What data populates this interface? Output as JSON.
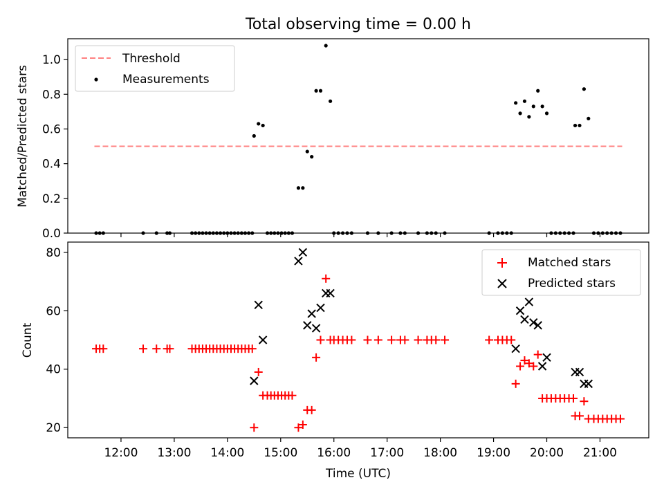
{
  "title": "Total observing time = 0.00 h",
  "chart_data": [
    {
      "type": "scatter",
      "panel": "top",
      "ylabel": "Matched/Predicted stars",
      "ylim": [
        0,
        1.12
      ],
      "yticks": [
        0.0,
        0.2,
        0.4,
        0.6,
        0.8,
        1.0
      ],
      "ytick_labels": [
        "0.0",
        "0.2",
        "0.4",
        "0.6",
        "0.8",
        "1.0"
      ],
      "legend": {
        "placement": "upper-left",
        "entries": [
          "Threshold",
          "Measurements"
        ]
      },
      "threshold": {
        "name": "Threshold",
        "value": 0.5,
        "x_start": "11:30",
        "x_end": "21:25",
        "color": "#ff8080",
        "style": "dashed"
      },
      "series": [
        {
          "name": "Measurements",
          "color": "#000000",
          "marker": "dot",
          "points": [
            [
              "11:32",
              0
            ],
            [
              "11:36",
              0
            ],
            [
              "11:40",
              0
            ],
            [
              "12:25",
              0
            ],
            [
              "12:40",
              0
            ],
            [
              "12:52",
              0
            ],
            [
              "12:55",
              0
            ],
            [
              "13:20",
              0
            ],
            [
              "13:24",
              0
            ],
            [
              "13:28",
              0
            ],
            [
              "13:32",
              0
            ],
            [
              "13:36",
              0
            ],
            [
              "13:40",
              0
            ],
            [
              "13:44",
              0
            ],
            [
              "13:48",
              0
            ],
            [
              "13:52",
              0
            ],
            [
              "13:56",
              0
            ],
            [
              "14:00",
              0
            ],
            [
              "14:04",
              0
            ],
            [
              "14:08",
              0
            ],
            [
              "14:12",
              0
            ],
            [
              "14:16",
              0
            ],
            [
              "14:20",
              0
            ],
            [
              "14:24",
              0
            ],
            [
              "14:28",
              0
            ],
            [
              "14:30",
              0.56
            ],
            [
              "14:35",
              0.63
            ],
            [
              "14:40",
              0.62
            ],
            [
              "14:45",
              0
            ],
            [
              "14:49",
              0
            ],
            [
              "14:53",
              0
            ],
            [
              "14:57",
              0
            ],
            [
              "15:01",
              0
            ],
            [
              "15:05",
              0
            ],
            [
              "15:09",
              0
            ],
            [
              "15:13",
              0
            ],
            [
              "15:20",
              0.26
            ],
            [
              "15:25",
              0.26
            ],
            [
              "15:30",
              0.47
            ],
            [
              "15:35",
              0.44
            ],
            [
              "15:40",
              0.82
            ],
            [
              "15:45",
              0.82
            ],
            [
              "15:51",
              1.08
            ],
            [
              "15:56",
              0.76
            ],
            [
              "16:00",
              0
            ],
            [
              "16:05",
              0
            ],
            [
              "16:10",
              0
            ],
            [
              "16:15",
              0
            ],
            [
              "16:20",
              0
            ],
            [
              "16:38",
              0
            ],
            [
              "16:50",
              0
            ],
            [
              "17:05",
              0
            ],
            [
              "17:15",
              0
            ],
            [
              "17:20",
              0
            ],
            [
              "17:35",
              0
            ],
            [
              "17:45",
              0
            ],
            [
              "17:50",
              0
            ],
            [
              "17:55",
              0
            ],
            [
              "18:05",
              0
            ],
            [
              "18:55",
              0
            ],
            [
              "19:05",
              0
            ],
            [
              "19:10",
              0
            ],
            [
              "19:15",
              0
            ],
            [
              "19:20",
              0
            ],
            [
              "19:25",
              0.75
            ],
            [
              "19:30",
              0.69
            ],
            [
              "19:35",
              0.76
            ],
            [
              "19:40",
              0.67
            ],
            [
              "19:45",
              0.73
            ],
            [
              "19:50",
              0.82
            ],
            [
              "19:55",
              0.73
            ],
            [
              "20:00",
              0.69
            ],
            [
              "20:05",
              0
            ],
            [
              "20:10",
              0
            ],
            [
              "20:15",
              0
            ],
            [
              "20:20",
              0
            ],
            [
              "20:25",
              0
            ],
            [
              "20:30",
              0
            ],
            [
              "20:32",
              0.62
            ],
            [
              "20:37",
              0.62
            ],
            [
              "20:42",
              0.83
            ],
            [
              "20:47",
              0.66
            ],
            [
              "20:53",
              0
            ],
            [
              "20:58",
              0
            ],
            [
              "21:03",
              0
            ],
            [
              "21:08",
              0
            ],
            [
              "21:13",
              0
            ],
            [
              "21:18",
              0
            ],
            [
              "21:23",
              0
            ]
          ]
        }
      ]
    },
    {
      "type": "scatter",
      "panel": "bottom",
      "xlabel": "Time (UTC)",
      "ylabel": "Count",
      "xlim": [
        "11:00",
        "21:55"
      ],
      "xticks": [
        "12:00",
        "13:00",
        "14:00",
        "15:00",
        "16:00",
        "17:00",
        "18:00",
        "19:00",
        "20:00",
        "21:00"
      ],
      "ylim": [
        16.5,
        83.5
      ],
      "yticks": [
        20,
        40,
        60,
        80
      ],
      "ytick_labels": [
        "20",
        "40",
        "60",
        "80"
      ],
      "legend": {
        "placement": "upper-right",
        "entries": [
          "Matched stars",
          "Predicted stars"
        ]
      },
      "series": [
        {
          "name": "Matched stars",
          "color": "#ff0000",
          "marker": "plus",
          "points": [
            [
              "11:32",
              47
            ],
            [
              "11:36",
              47
            ],
            [
              "11:40",
              47
            ],
            [
              "12:25",
              47
            ],
            [
              "12:40",
              47
            ],
            [
              "12:52",
              47
            ],
            [
              "12:55",
              47
            ],
            [
              "13:20",
              47
            ],
            [
              "13:24",
              47
            ],
            [
              "13:28",
              47
            ],
            [
              "13:32",
              47
            ],
            [
              "13:36",
              47
            ],
            [
              "13:40",
              47
            ],
            [
              "13:44",
              47
            ],
            [
              "13:48",
              47
            ],
            [
              "13:52",
              47
            ],
            [
              "13:56",
              47
            ],
            [
              "14:00",
              47
            ],
            [
              "14:04",
              47
            ],
            [
              "14:08",
              47
            ],
            [
              "14:12",
              47
            ],
            [
              "14:16",
              47
            ],
            [
              "14:20",
              47
            ],
            [
              "14:24",
              47
            ],
            [
              "14:28",
              47
            ],
            [
              "14:30",
              20
            ],
            [
              "14:35",
              39
            ],
            [
              "14:40",
              31
            ],
            [
              "14:45",
              31
            ],
            [
              "14:49",
              31
            ],
            [
              "14:53",
              31
            ],
            [
              "14:57",
              31
            ],
            [
              "15:01",
              31
            ],
            [
              "15:05",
              31
            ],
            [
              "15:09",
              31
            ],
            [
              "15:13",
              31
            ],
            [
              "15:20",
              20
            ],
            [
              "15:25",
              21
            ],
            [
              "15:30",
              26
            ],
            [
              "15:35",
              26
            ],
            [
              "15:40",
              44
            ],
            [
              "15:45",
              50
            ],
            [
              "15:51",
              71
            ],
            [
              "15:56",
              50
            ],
            [
              "16:00",
              50
            ],
            [
              "16:05",
              50
            ],
            [
              "16:10",
              50
            ],
            [
              "16:15",
              50
            ],
            [
              "16:20",
              50
            ],
            [
              "16:38",
              50
            ],
            [
              "16:50",
              50
            ],
            [
              "17:05",
              50
            ],
            [
              "17:15",
              50
            ],
            [
              "17:20",
              50
            ],
            [
              "17:35",
              50
            ],
            [
              "17:45",
              50
            ],
            [
              "17:50",
              50
            ],
            [
              "17:55",
              50
            ],
            [
              "18:05",
              50
            ],
            [
              "18:55",
              50
            ],
            [
              "19:05",
              50
            ],
            [
              "19:10",
              50
            ],
            [
              "19:15",
              50
            ],
            [
              "19:20",
              50
            ],
            [
              "19:25",
              35
            ],
            [
              "19:30",
              41
            ],
            [
              "19:35",
              43
            ],
            [
              "19:40",
              42
            ],
            [
              "19:45",
              41
            ],
            [
              "19:50",
              45
            ],
            [
              "19:55",
              30
            ],
            [
              "20:00",
              30
            ],
            [
              "20:05",
              30
            ],
            [
              "20:10",
              30
            ],
            [
              "20:15",
              30
            ],
            [
              "20:20",
              30
            ],
            [
              "20:25",
              30
            ],
            [
              "20:30",
              30
            ],
            [
              "20:32",
              24
            ],
            [
              "20:37",
              24
            ],
            [
              "20:42",
              29
            ],
            [
              "20:47",
              23
            ],
            [
              "20:53",
              23
            ],
            [
              "20:58",
              23
            ],
            [
              "21:03",
              23
            ],
            [
              "21:08",
              23
            ],
            [
              "21:13",
              23
            ],
            [
              "21:18",
              23
            ],
            [
              "21:23",
              23
            ]
          ]
        },
        {
          "name": "Predicted stars",
          "color": "#000000",
          "marker": "x",
          "points": [
            [
              "14:30",
              36
            ],
            [
              "14:35",
              62
            ],
            [
              "14:40",
              50
            ],
            [
              "15:20",
              77
            ],
            [
              "15:25",
              80
            ],
            [
              "15:30",
              55
            ],
            [
              "15:35",
              59
            ],
            [
              "15:40",
              54
            ],
            [
              "15:45",
              61
            ],
            [
              "15:51",
              66
            ],
            [
              "15:56",
              66
            ],
            [
              "19:25",
              47
            ],
            [
              "19:30",
              60
            ],
            [
              "19:35",
              57
            ],
            [
              "19:40",
              63
            ],
            [
              "19:45",
              56
            ],
            [
              "19:50",
              55
            ],
            [
              "19:55",
              41
            ],
            [
              "20:00",
              44
            ],
            [
              "20:32",
              39
            ],
            [
              "20:37",
              39
            ],
            [
              "20:42",
              35
            ],
            [
              "20:47",
              35
            ]
          ]
        }
      ]
    }
  ]
}
